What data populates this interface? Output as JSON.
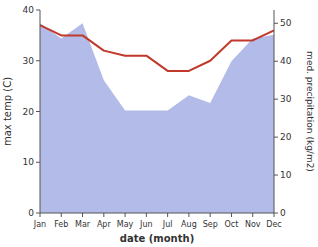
{
  "chart_data": {
    "type": "line",
    "categories": [
      "Jan",
      "Feb",
      "Mar",
      "Apr",
      "May",
      "Jun",
      "Jul",
      "Aug",
      "Sep",
      "Oct",
      "Nov",
      "Dec"
    ],
    "xlabel": "date (month)",
    "ylabel": "max temp (C)",
    "y2label": "med. precipitation (kg/m2)",
    "series": [
      {
        "type": "area",
        "axis": "y2",
        "color": "#b3bce8",
        "values": [
          50,
          46,
          50,
          35,
          27,
          27,
          27,
          31,
          29,
          40,
          46,
          47
        ]
      },
      {
        "type": "line",
        "color": "#c0392b",
        "values": [
          37,
          35,
          35,
          32,
          31,
          31,
          28,
          28,
          30,
          34,
          34,
          36
        ]
      }
    ],
    "ylim": [
      0,
      40
    ],
    "yticks": [
      0,
      10,
      20,
      30,
      40
    ],
    "y2lim": [
      0,
      53.5
    ],
    "y2ticks": [
      0,
      10,
      20,
      30,
      40,
      50
    ]
  }
}
